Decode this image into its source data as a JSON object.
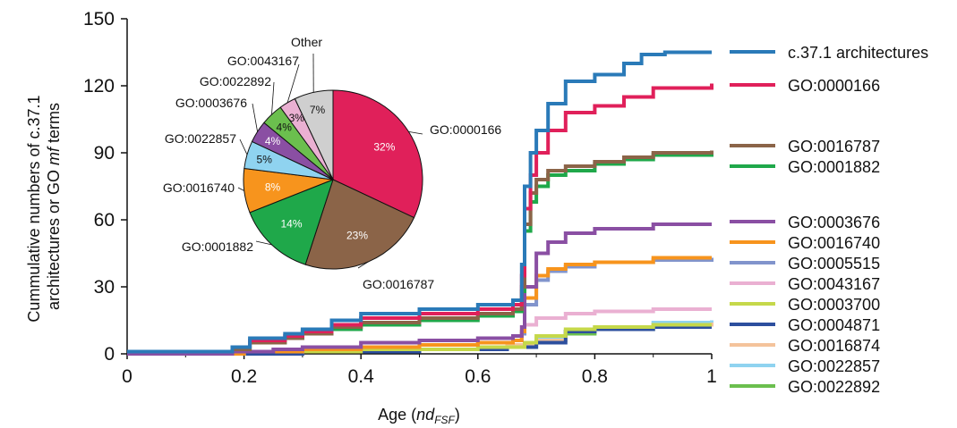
{
  "chart_data": [
    {
      "type": "line",
      "ylabel_line1": "Cummulative numbers of c.37.1",
      "ylabel_line2_prefix": "architectures or GO ",
      "ylabel_line2_italic": "mf",
      "ylabel_line2_suffix": " terms",
      "xlabel_prefix": "Age (",
      "xlabel_italic": "nd",
      "xlabel_sub": "FSF",
      "xlabel_suffix": ")",
      "xlim": [
        0,
        1
      ],
      "ylim": [
        0,
        150
      ],
      "xticks": [
        "0",
        "0.2",
        "0.4",
        "0.6",
        "0.8",
        "1"
      ],
      "yticks": [
        "0",
        "30",
        "60",
        "90",
        "120",
        "150"
      ],
      "grid": false,
      "legend_position": "right",
      "series": [
        {
          "name": "c.37.1 architectures",
          "color": "#2a7ab8",
          "x": [
            0,
            0.18,
            0.21,
            0.27,
            0.3,
            0.35,
            0.4,
            0.5,
            0.6,
            0.66,
            0.675,
            0.68,
            0.69,
            0.7,
            0.72,
            0.75,
            0.8,
            0.85,
            0.88,
            0.92,
            1.0
          ],
          "y": [
            1,
            3,
            7,
            9,
            11,
            15,
            18,
            20,
            22,
            24,
            40,
            75,
            90,
            100,
            112,
            122,
            125,
            130,
            134,
            135,
            135
          ]
        },
        {
          "name": "GO:0000166",
          "color": "#e0205a",
          "x": [
            0,
            0.18,
            0.21,
            0.27,
            0.3,
            0.35,
            0.4,
            0.5,
            0.6,
            0.66,
            0.675,
            0.68,
            0.69,
            0.7,
            0.72,
            0.75,
            0.8,
            0.85,
            0.9,
            1.0
          ],
          "y": [
            1,
            3,
            6,
            8,
            10,
            13,
            16,
            18,
            20,
            22,
            35,
            65,
            80,
            90,
            100,
            108,
            111,
            115,
            119,
            121
          ]
        },
        {
          "name": "GO:0016787",
          "color": "#8b6448",
          "x": [
            0,
            0.18,
            0.21,
            0.27,
            0.3,
            0.35,
            0.4,
            0.5,
            0.6,
            0.66,
            0.675,
            0.68,
            0.69,
            0.7,
            0.72,
            0.75,
            0.8,
            0.85,
            0.9,
            1.0
          ],
          "y": [
            1,
            2,
            5,
            7,
            9,
            12,
            14,
            16,
            18,
            20,
            30,
            58,
            72,
            78,
            82,
            84,
            86,
            88,
            90,
            91
          ]
        },
        {
          "name": "GO:0001882",
          "color": "#1fa84a",
          "x": [
            0,
            0.18,
            0.21,
            0.27,
            0.3,
            0.35,
            0.4,
            0.5,
            0.6,
            0.66,
            0.675,
            0.68,
            0.69,
            0.7,
            0.72,
            0.75,
            0.8,
            0.85,
            0.9,
            1.0
          ],
          "y": [
            1,
            2,
            5,
            7,
            9,
            11,
            13,
            15,
            17,
            19,
            28,
            55,
            68,
            75,
            80,
            82,
            85,
            87,
            89,
            90
          ]
        },
        {
          "name": "GO:0003676",
          "color": "#8a4fa3",
          "x": [
            0,
            0.18,
            0.25,
            0.3,
            0.4,
            0.5,
            0.6,
            0.66,
            0.675,
            0.68,
            0.7,
            0.72,
            0.75,
            0.8,
            0.9,
            1.0
          ],
          "y": [
            0,
            1,
            2,
            3,
            5,
            6,
            7,
            8,
            12,
            30,
            45,
            50,
            54,
            56,
            58,
            58
          ]
        },
        {
          "name": "GO:0016740",
          "color": "#f7941d",
          "x": [
            0,
            0.2,
            0.3,
            0.4,
            0.5,
            0.6,
            0.66,
            0.675,
            0.68,
            0.7,
            0.72,
            0.75,
            0.8,
            0.9,
            1.0
          ],
          "y": [
            0,
            1,
            2,
            3,
            4,
            5,
            6,
            10,
            25,
            35,
            38,
            40,
            41,
            43,
            43
          ]
        },
        {
          "name": "GO:0005515",
          "color": "#8194cc",
          "x": [
            0,
            0.2,
            0.3,
            0.4,
            0.5,
            0.6,
            0.66,
            0.675,
            0.68,
            0.7,
            0.72,
            0.75,
            0.8,
            0.9,
            1.0
          ],
          "y": [
            0,
            1,
            2,
            3,
            4,
            5,
            6,
            9,
            22,
            33,
            37,
            39,
            41,
            42,
            43
          ]
        },
        {
          "name": "GO:0043167",
          "color": "#eab0d2",
          "x": [
            0,
            0.2,
            0.3,
            0.4,
            0.5,
            0.6,
            0.66,
            0.675,
            0.68,
            0.7,
            0.75,
            0.8,
            0.9,
            1.0
          ],
          "y": [
            0,
            1,
            3,
            5,
            6,
            7,
            8,
            9,
            13,
            16,
            18,
            19,
            20,
            20
          ]
        },
        {
          "name": "GO:0003700",
          "color": "#c5d84a",
          "x": [
            0,
            0.2,
            0.4,
            0.6,
            0.68,
            0.7,
            0.75,
            0.8,
            0.9,
            1.0
          ],
          "y": [
            0,
            1,
            2,
            3,
            5,
            8,
            11,
            12,
            13,
            13
          ]
        },
        {
          "name": "GO:0004871",
          "color": "#2d4f9e",
          "x": [
            0,
            0.3,
            0.5,
            0.65,
            0.7,
            0.75,
            0.8,
            0.9,
            1.0
          ],
          "y": [
            0,
            1,
            2,
            3,
            5,
            10,
            11,
            12,
            12
          ]
        },
        {
          "name": "GO:0016874",
          "color": "#f4c39b",
          "x": [
            0,
            0.3,
            0.5,
            0.65,
            0.7,
            0.75,
            0.8,
            0.9,
            1.0
          ],
          "y": [
            0,
            1,
            2,
            4,
            6,
            10,
            12,
            13,
            14
          ]
        },
        {
          "name": "GO:0022857",
          "color": "#8fd3f0",
          "x": [
            0,
            0.3,
            0.5,
            0.65,
            0.7,
            0.75,
            0.8,
            0.9,
            1.0
          ],
          "y": [
            0,
            1,
            2,
            4,
            7,
            10,
            12,
            14,
            15
          ]
        },
        {
          "name": "GO:0022892",
          "color": "#6bbf4e",
          "x": [
            0,
            0.3,
            0.5,
            0.65,
            0.7,
            0.75,
            0.8,
            0.9,
            1.0
          ],
          "y": [
            0,
            1,
            2,
            3,
            6,
            9,
            11,
            13,
            14
          ]
        }
      ]
    },
    {
      "type": "pie",
      "slices": [
        {
          "name": "GO:0000166",
          "value": 32,
          "label": "32%",
          "color": "#e0205a"
        },
        {
          "name": "GO:0016787",
          "value": 23,
          "label": "23%",
          "color": "#8b6448"
        },
        {
          "name": "GO:0001882",
          "value": 14,
          "label": "14%",
          "color": "#1fa84a"
        },
        {
          "name": "GO:0016740",
          "value": 8,
          "label": "8%",
          "color": "#f7941d"
        },
        {
          "name": "GO:0022857",
          "value": 5,
          "label": "5%",
          "color": "#8fd3f0"
        },
        {
          "name": "GO:0003676",
          "value": 4,
          "label": "4%",
          "color": "#8a4fa3"
        },
        {
          "name": "GO:0022892",
          "value": 4,
          "label": "4%",
          "color": "#6bbf4e"
        },
        {
          "name": "GO:0043167",
          "value": 3,
          "label": "3%",
          "color": "#eab0d2"
        },
        {
          "name": "Other",
          "value": 7,
          "label": "7%",
          "color": "#cfcfcf"
        }
      ]
    }
  ]
}
